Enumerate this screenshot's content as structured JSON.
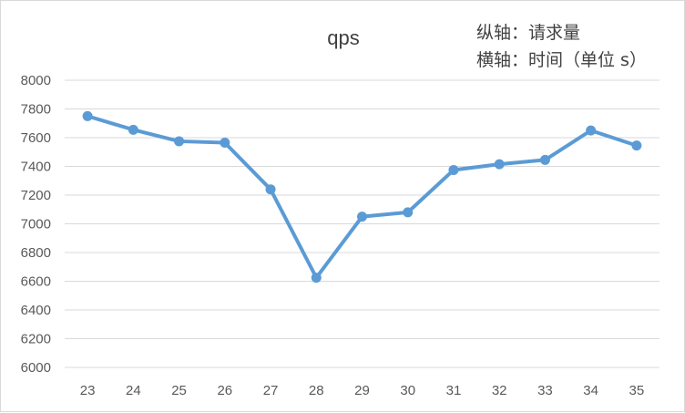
{
  "chart_data": {
    "type": "line",
    "title": "qps",
    "annotations": [
      "纵轴：请求量",
      "横轴：时间（单位 s）"
    ],
    "xlabel": "",
    "ylabel": "",
    "categories": [
      "23",
      "24",
      "25",
      "26",
      "27",
      "28",
      "29",
      "30",
      "31",
      "32",
      "33",
      "34",
      "35"
    ],
    "series": [
      {
        "values": [
          7750,
          7655,
          7575,
          7565,
          7240,
          6625,
          7050,
          7080,
          7375,
          7415,
          7445,
          7650,
          7545
        ],
        "color": "#5b9bd5"
      }
    ],
    "ylim": [
      6000,
      8000
    ],
    "yticks": [
      6000,
      6200,
      6400,
      6600,
      6800,
      7000,
      7200,
      7400,
      7600,
      7800,
      8000
    ],
    "grid": true,
    "gridColor": "#d9d9d9",
    "legend": "none"
  }
}
